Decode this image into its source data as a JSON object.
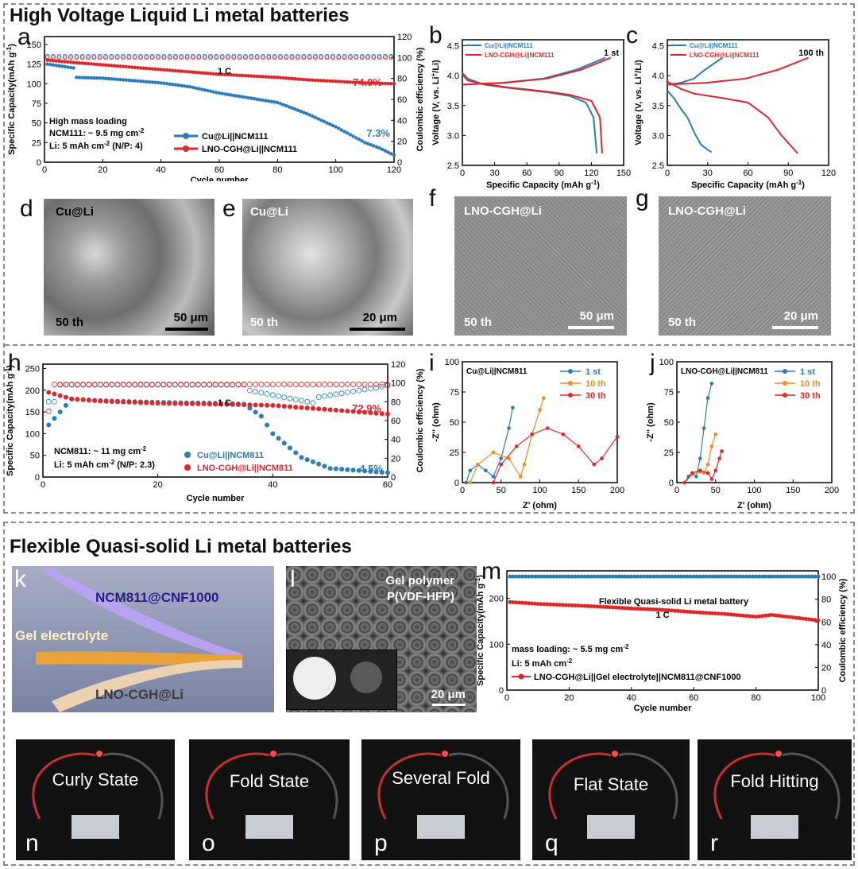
{
  "top_title": "High Voltage Liquid Li metal batteries",
  "bottom_title": "Flexible Quasi-solid  Li metal batteries",
  "colors": {
    "blue": "#2b7bbb",
    "red": "#e0262a",
    "orange": "#f08a1c",
    "gray_border": "#8a8a8a"
  },
  "panel_a": {
    "letter": "a",
    "ylabel": "Specific Capacity(mAh g",
    "ylabel_sup": "-1",
    "ylabel2": "Coulombic efficiency (%)",
    "xlabel": "Cycle number",
    "rate": "1 C",
    "notes": [
      "High mass loading",
      "NCM111: ~ 9.5 mg cm",
      "Li: 5 mAh cm"
    ],
    "note_sups": [
      "-2",
      "-2"
    ],
    "note_np": "(N/P: 4)",
    "pct_red": "74.9%",
    "pct_blue": "7.3%",
    "legend": [
      "Cu@Li||NCM111",
      "LNO-CGH@Li||NCM111"
    ],
    "x_ticks": [
      "0",
      "20",
      "40",
      "60",
      "80",
      "100",
      "120"
    ],
    "y_ticks": [
      "0",
      "25",
      "50",
      "75",
      "100",
      "125",
      "150"
    ],
    "y2_ticks": [
      "0",
      "20",
      "40",
      "60",
      "80",
      "100",
      "120"
    ]
  },
  "panel_b": {
    "letter": "b",
    "ylabel": "Voltage (V, vs. Li",
    "ylabel_sup": "+",
    "ylabel_tail": "/Li)",
    "xlabel": "Specific Capacity (mAh g",
    "xlabel_sup": "-1",
    "cycle": "1 st",
    "legend": [
      "Cu@Li||NCM111",
      "LNO-CGH@Li||NCM111"
    ],
    "x_ticks": [
      "0",
      "30",
      "60",
      "90",
      "120",
      "150"
    ],
    "y_ticks": [
      "2.5",
      "3.0",
      "3.5",
      "4.0",
      "4.5"
    ]
  },
  "panel_c": {
    "letter": "c",
    "ylabel": "Voltage (V, vs. Li",
    "ylabel_sup": "+",
    "ylabel_tail": "/Li)",
    "xlabel": "Specific Capacity (mAh g",
    "xlabel_sup": "-1",
    "cycle": "100 th",
    "legend": [
      "Cu@Li||NCM111",
      "LNO-CGH@Li||NCM111"
    ],
    "x_ticks": [
      "0",
      "30",
      "60",
      "90",
      "120"
    ],
    "y_ticks": [
      "2.5",
      "3.0",
      "3.5",
      "4.0",
      "4.5"
    ]
  },
  "sem_images": [
    {
      "letter": "d",
      "label": "Cu@Li",
      "cycle": "50 th",
      "scale": "50 μm"
    },
    {
      "letter": "e",
      "label": "Cu@Li",
      "cycle": "50 th",
      "scale": "20 μm"
    },
    {
      "letter": "f",
      "label": "LNO-CGH@Li",
      "cycle": "50 th",
      "scale": "50 μm"
    },
    {
      "letter": "g",
      "label": "LNO-CGH@Li",
      "cycle": "50 th",
      "scale": "20 μm"
    }
  ],
  "panel_h": {
    "letter": "h",
    "ylabel": "Specific Capacity(mAh g",
    "ylabel_sup": "-1",
    "ylabel2": "Coulombic efficiency (%)",
    "xlabel": "Cycle number",
    "rate": "1 C",
    "notes": [
      "NCM811: ~ 11 mg cm",
      "Li: 5 mAh cm"
    ],
    "note_sups": [
      "-2",
      "-2"
    ],
    "note_np": "(N/P: 2.3)",
    "pct_red": "72.9%",
    "pct_blue": "4.5%",
    "legend": [
      "Cu@Li||NCM811",
      "LNO-CGH@Li||NCM811"
    ],
    "x_ticks": [
      "0",
      "20",
      "40",
      "60"
    ],
    "y_ticks": [
      "0",
      "50",
      "100",
      "150",
      "200",
      "250"
    ],
    "y2_ticks": [
      "0",
      "20",
      "40",
      "60",
      "80",
      "100",
      "120"
    ]
  },
  "panel_i": {
    "letter": "i",
    "title": "Cu@Li||NCM811",
    "ylabel": "-Z'' (ohm)",
    "xlabel": "Z' (ohm)",
    "legend": [
      "1 st",
      "10 th",
      "30 th"
    ],
    "x_ticks": [
      "0",
      "50",
      "100",
      "150",
      "200"
    ],
    "y_ticks": [
      "0",
      "25",
      "50",
      "75",
      "100"
    ]
  },
  "panel_j": {
    "letter": "j",
    "title": "LNO-CGH@Li||NCM811",
    "ylabel": "-Z'' (ohm)",
    "xlabel": "Z' (ohm)",
    "legend": [
      "1 st",
      "10 th",
      "30 th"
    ],
    "x_ticks": [
      "0",
      "50",
      "100",
      "150",
      "200"
    ],
    "y_ticks": [
      "0",
      "25",
      "50",
      "75",
      "100"
    ]
  },
  "panel_k": {
    "letter": "k",
    "labels": [
      "NCM811@CNF1000",
      "Gel  electrolyte",
      "LNO-CGH@Li"
    ]
  },
  "panel_l": {
    "letter": "l",
    "labels": [
      "Gel polymer",
      "P(VDF-HFP)"
    ],
    "scale": "20 μm"
  },
  "panel_m": {
    "letter": "m",
    "title": "Flexible Quasi-solid Li metal battery",
    "rate": "1 C",
    "ylabel": "Specific Capacity(mAh g",
    "ylabel_sup": "-1",
    "ylabel2": "Coulombic efficiency (%)",
    "xlabel": "Cycle number",
    "notes": [
      "mass loading:  ~ 5.5 mg cm",
      "Li:  5 mAh cm"
    ],
    "note_sups": [
      "-2",
      "-2"
    ],
    "legend": [
      "LNO-CGH@Li||Gel electrolyte||NCM811@CNF1000"
    ],
    "x_ticks": [
      "0",
      "20",
      "40",
      "60",
      "80",
      "100"
    ],
    "y_ticks": [
      "0",
      "100",
      "200"
    ],
    "y2_ticks": [
      "0",
      "20",
      "40",
      "60",
      "80",
      "100"
    ]
  },
  "photos": [
    {
      "letter": "n",
      "state": "Curly State"
    },
    {
      "letter": "o",
      "state": "Fold State"
    },
    {
      "letter": "p",
      "state": "Several Fold"
    },
    {
      "letter": "q",
      "state": "Flat State"
    },
    {
      "letter": "r",
      "state": "Fold Hitting"
    }
  ],
  "chart_data": [
    {
      "type": "scatter",
      "panel": "a",
      "series": [
        {
          "name": "Cu@Li||NCM111",
          "x": [
            1,
            10,
            11,
            20,
            30,
            40,
            50,
            60,
            70,
            80,
            90,
            100,
            110,
            115,
            120
          ],
          "values": [
            125,
            120,
            108,
            107,
            104,
            101,
            96,
            88,
            82,
            76,
            62,
            45,
            25,
            18,
            9
          ]
        },
        {
          "name": "LNO-CGH@Li||NCM111",
          "x": [
            1,
            10,
            20,
            30,
            40,
            50,
            60,
            70,
            80,
            90,
            100,
            110,
            120
          ],
          "values": [
            130,
            127,
            124,
            121,
            118,
            115,
            112,
            110,
            108,
            105,
            103,
            101,
            100
          ]
        }
      ],
      "xlim": [
        0,
        120
      ],
      "ylim": [
        0,
        160
      ],
      "y2lim": [
        0,
        120
      ]
    },
    {
      "type": "line",
      "panel": "b",
      "xlim": [
        0,
        150
      ],
      "ylim": [
        2.5,
        4.6
      ],
      "series": [
        {
          "name": "Cu@Li||NCM111",
          "x": [
            0,
            5,
            20,
            40,
            60,
            80,
            100,
            115,
            122,
            125
          ],
          "values": [
            4.05,
            3.95,
            3.85,
            3.8,
            3.76,
            3.72,
            3.66,
            3.55,
            3.3,
            2.7
          ]
        },
        {
          "name": "LNO-CGH@Li||NCM111",
          "x": [
            0,
            5,
            20,
            40,
            60,
            80,
            100,
            120,
            128,
            130
          ],
          "values": [
            4.02,
            3.92,
            3.86,
            3.81,
            3.77,
            3.73,
            3.68,
            3.58,
            3.3,
            2.7
          ]
        }
      ]
    },
    {
      "type": "line",
      "panel": "c",
      "xlim": [
        0,
        120
      ],
      "ylim": [
        2.5,
        4.6
      ],
      "series": [
        {
          "name": "Cu@Li||NCM111",
          "x": [
            0,
            5,
            10,
            15,
            20,
            25,
            30,
            33
          ],
          "values": [
            3.75,
            3.62,
            3.45,
            3.3,
            3.05,
            2.85,
            2.76,
            2.72
          ]
        },
        {
          "name": "LNO-CGH@Li||NCM111",
          "x": [
            0,
            10,
            20,
            40,
            60,
            75,
            85,
            97
          ],
          "values": [
            3.9,
            3.78,
            3.7,
            3.63,
            3.55,
            3.3,
            3.0,
            2.7
          ]
        }
      ]
    },
    {
      "type": "scatter",
      "panel": "h",
      "xlim": [
        0,
        60
      ],
      "ylim": [
        0,
        260
      ],
      "y2lim": [
        0,
        120
      ],
      "series": [
        {
          "name": "Cu@Li||NCM811",
          "x": [
            1,
            5,
            10,
            20,
            30,
            35,
            38,
            40,
            45,
            50,
            55,
            60
          ],
          "values": [
            120,
            180,
            176,
            172,
            170,
            168,
            140,
            100,
            45,
            20,
            15,
            10
          ]
        },
        {
          "name": "LNO-CGH@Li||NCM811",
          "x": [
            1,
            5,
            10,
            20,
            30,
            40,
            50,
            60
          ],
          "values": [
            195,
            180,
            175,
            170,
            168,
            165,
            155,
            145
          ]
        }
      ]
    },
    {
      "type": "scatter",
      "panel": "i",
      "xlim": [
        0,
        200
      ],
      "ylim": [
        0,
        100
      ],
      "series": [
        {
          "name": "1 st",
          "x": [
            5,
            10,
            20,
            30,
            40,
            50,
            60,
            65
          ],
          "values": [
            0,
            10,
            15,
            10,
            5,
            20,
            45,
            62
          ]
        },
        {
          "name": "10 th",
          "x": [
            10,
            20,
            40,
            60,
            75,
            80,
            90,
            100,
            105
          ],
          "values": [
            0,
            15,
            25,
            20,
            5,
            15,
            40,
            60,
            70
          ]
        },
        {
          "name": "30 th",
          "x": [
            40,
            50,
            70,
            90,
            110,
            130,
            150,
            170,
            180,
            200
          ],
          "values": [
            0,
            15,
            30,
            40,
            45,
            40,
            30,
            15,
            20,
            38
          ]
        }
      ]
    },
    {
      "type": "scatter",
      "panel": "j",
      "xlim": [
        0,
        200
      ],
      "ylim": [
        0,
        100
      ],
      "series": [
        {
          "name": "1 st",
          "x": [
            10,
            15,
            20,
            25,
            30,
            35,
            40,
            45
          ],
          "values": [
            0,
            5,
            8,
            5,
            20,
            45,
            70,
            82
          ]
        },
        {
          "name": "10 th",
          "x": [
            10,
            20,
            30,
            35,
            40,
            45,
            50
          ],
          "values": [
            0,
            7,
            9,
            8,
            15,
            30,
            40
          ]
        },
        {
          "name": "30 th",
          "x": [
            10,
            20,
            30,
            40,
            45,
            50,
            55,
            58
          ],
          "values": [
            0,
            8,
            10,
            8,
            3,
            10,
            20,
            26
          ]
        }
      ]
    },
    {
      "type": "scatter",
      "panel": "m",
      "xlim": [
        0,
        100
      ],
      "ylim": [
        0,
        260
      ],
      "y2lim": [
        0,
        105
      ],
      "series": [
        {
          "name": "LNO-CGH@Li||Gel electrolyte||NCM811@CNF1000",
          "x": [
            1,
            10,
            20,
            30,
            40,
            50,
            60,
            70,
            80,
            85,
            90,
            100
          ],
          "values": [
            192,
            188,
            185,
            182,
            178,
            175,
            170,
            166,
            160,
            164,
            160,
            152
          ]
        }
      ]
    }
  ]
}
